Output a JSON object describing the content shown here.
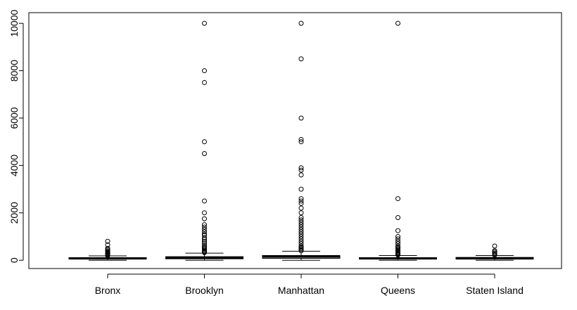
{
  "chart_data": {
    "type": "boxplot",
    "title": "",
    "xlabel": "",
    "ylabel": "",
    "ylim": [
      -350,
      10450
    ],
    "yticks": [
      0,
      2000,
      4000,
      6000,
      8000,
      10000
    ],
    "ytick_labels": [
      "0",
      "2000",
      "4000",
      "6000",
      "8000",
      "10000"
    ],
    "categories": [
      "Bronx",
      "Brooklyn",
      "Manhattan",
      "Queens",
      "Staten Island"
    ],
    "boxes": [
      {
        "label": "Bronx",
        "whisker_low": 0,
        "q1": 50,
        "median": 75,
        "q3": 110,
        "whisker_high": 185,
        "outliers": [
          200,
          220,
          250,
          280,
          300,
          330,
          360,
          400,
          450,
          500,
          650,
          800
        ]
      },
      {
        "label": "Brooklyn",
        "whisker_low": 0,
        "q1": 60,
        "median": 100,
        "q3": 150,
        "whisker_high": 300,
        "outliers": [
          320,
          350,
          380,
          420,
          470,
          520,
          580,
          650,
          720,
          800,
          880,
          950,
          1050,
          1100,
          1200,
          1300,
          1400,
          1500,
          1750,
          2000,
          2500,
          4500,
          5000,
          7500,
          8000,
          10000
        ]
      },
      {
        "label": "Manhattan",
        "whisker_low": 0,
        "q1": 80,
        "median": 150,
        "q3": 200,
        "whisker_high": 380,
        "outliers": [
          400,
          450,
          500,
          550,
          600,
          700,
          800,
          900,
          1000,
          1100,
          1200,
          1300,
          1400,
          1500,
          1600,
          1700,
          1800,
          2000,
          2200,
          2400,
          2500,
          2600,
          3000,
          3600,
          3800,
          3900,
          5000,
          5100,
          6000,
          8500,
          10000
        ]
      },
      {
        "label": "Queens",
        "whisker_low": 0,
        "q1": 50,
        "median": 75,
        "q3": 110,
        "whisker_high": 200,
        "outliers": [
          220,
          250,
          280,
          310,
          350,
          400,
          450,
          500,
          550,
          600,
          700,
          800,
          900,
          1000,
          1250,
          1800,
          2600,
          10000
        ]
      },
      {
        "label": "Staten Island",
        "whisker_low": 0,
        "q1": 50,
        "median": 75,
        "q3": 120,
        "whisker_high": 200,
        "outliers": [
          220,
          260,
          300,
          350,
          400,
          600
        ]
      }
    ],
    "colors": {
      "line": "#000000",
      "background": "#ffffff"
    }
  }
}
